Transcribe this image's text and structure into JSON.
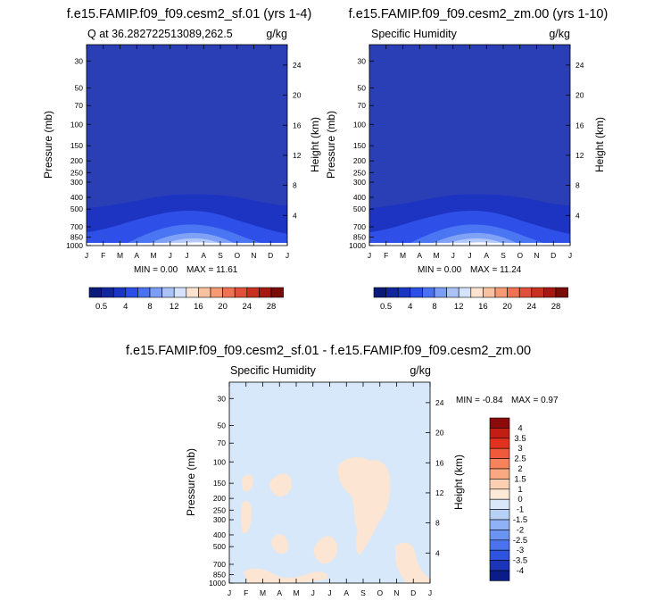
{
  "colors": {
    "fill_dark": "#2a3fb5",
    "fill_level1": "#1c2fb0",
    "levels_top": [
      "#2437b0",
      "#2d4ae0",
      "#3f6af3",
      "#6e94f5",
      "#9cb9f7",
      "#c8d8f9",
      "#e4ecfb",
      "#ffffff"
    ],
    "diff_bg": "#d6e8fa",
    "diff_pos": "#fce5d2"
  },
  "chart_data": [
    {
      "type": "contour",
      "title": "f.e15.FAMIP.f09_f09.cesm2_sf.01 (yrs 1-4)",
      "left_label": "Q at 36.282722513089,262.5",
      "right_label": "g/kg",
      "ylabel": "Pressure (mb)",
      "ylabel_right": "Height (km)",
      "x_ticks": [
        "J",
        "F",
        "M",
        "A",
        "M",
        "J",
        "J",
        "A",
        "S",
        "O",
        "N",
        "D",
        "J"
      ],
      "y_ticks": [
        "30",
        "50",
        "70",
        "100",
        "150",
        "200",
        "250",
        "300",
        "400",
        "500",
        "700",
        "850",
        "1000"
      ],
      "y_ticks_right": [
        "24",
        "20",
        "16",
        "12",
        "8",
        "4"
      ],
      "min_label": "MIN =   0.00",
      "max_label": "MAX =  11.61",
      "min": 0.0,
      "max": 11.61,
      "colorbar_labels": [
        "0.5",
        "4",
        "8",
        "12",
        "16",
        "20",
        "24",
        "28"
      ]
    },
    {
      "type": "contour",
      "title": "f.e15.FAMIP.f09_f09.cesm2_zm.00 (yrs 1-10)",
      "left_label": "Specific Humidity",
      "right_label": "g/kg",
      "ylabel": "Pressure (mb)",
      "ylabel_right": "Height (km)",
      "x_ticks": [
        "J",
        "F",
        "M",
        "A",
        "M",
        "J",
        "J",
        "A",
        "S",
        "O",
        "N",
        "D",
        "J"
      ],
      "y_ticks": [
        "30",
        "50",
        "70",
        "100",
        "150",
        "200",
        "250",
        "300",
        "400",
        "500",
        "700",
        "850",
        "1000"
      ],
      "y_ticks_right": [
        "24",
        "20",
        "16",
        "12",
        "8",
        "4"
      ],
      "min_label": "MIN =   0.00",
      "max_label": "MAX =  11.24",
      "min": 0.0,
      "max": 11.24,
      "colorbar_labels": [
        "0.5",
        "4",
        "8",
        "12",
        "16",
        "20",
        "24",
        "28"
      ]
    },
    {
      "type": "contour",
      "title": "f.e15.FAMIP.f09_f09.cesm2_sf.01 - f.e15.FAMIP.f09_f09.cesm2_zm.00",
      "left_label": "Specific Humidity",
      "right_label": "g/kg",
      "ylabel": "Pressure (mb)",
      "ylabel_right": "Height (km)",
      "x_ticks": [
        "J",
        "F",
        "M",
        "A",
        "M",
        "J",
        "J",
        "A",
        "S",
        "O",
        "N",
        "D",
        "J"
      ],
      "y_ticks": [
        "30",
        "50",
        "70",
        "100",
        "150",
        "200",
        "250",
        "300",
        "400",
        "500",
        "700",
        "850",
        "1000"
      ],
      "y_ticks_right": [
        "24",
        "20",
        "16",
        "12",
        "8",
        "4"
      ],
      "min_label": "MIN =  -0.84",
      "max_label": "MAX =   0.97",
      "min": -0.84,
      "max": 0.97,
      "colorbar_labels": [
        "4",
        "3.5",
        "3",
        "2.5",
        "2",
        "1.5",
        "1",
        "0",
        "-1",
        "-1.5",
        "-2",
        "-2.5",
        "-3",
        "-3.5",
        "-4"
      ]
    }
  ]
}
